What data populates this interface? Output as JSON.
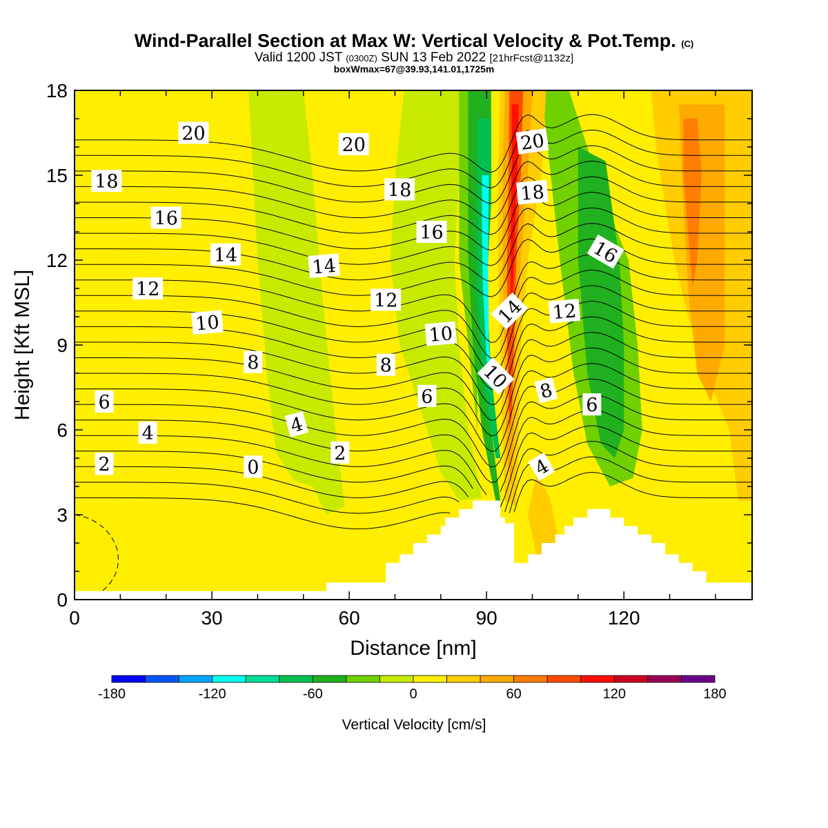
{
  "chart_data": {
    "type": "heatmap",
    "title": "Wind-Parallel Section at Max W: Vertical Velocity & Pot.Temp.",
    "title_mark": "(C)",
    "subtitle": {
      "pre": "Valid 1200 JST",
      "utc": "(0300Z)",
      "date": "SUN 13 Feb 2022",
      "fcst": "[21hrFcst@1132z]"
    },
    "subtitle2": "boxWmax=67@39.93,141.01,1725m",
    "xlabel": "Distance [nm]",
    "ylabel": "Height [Kft MSL]",
    "xlim": [
      0,
      148
    ],
    "ylim": [
      0,
      18
    ],
    "x_ticks": [
      "0",
      "30",
      "60",
      "90",
      "120"
    ],
    "x_tick_values": [
      0,
      30,
      60,
      90,
      120
    ],
    "y_ticks": [
      "0",
      "3",
      "6",
      "9",
      "12",
      "15",
      "18"
    ],
    "y_tick_values": [
      0,
      3,
      6,
      9,
      12,
      15,
      18
    ],
    "colorbar": {
      "label": "Vertical Velocity [cm/s]",
      "range": [
        -180,
        180
      ],
      "step": 20,
      "tick_labels": [
        "-180",
        "-120",
        "-60",
        "0",
        "60",
        "120",
        "180"
      ],
      "tick_values": [
        -180,
        -120,
        -60,
        0,
        60,
        120,
        180
      ],
      "colors": [
        "#0000ff",
        "#0055ff",
        "#00a5ff",
        "#00ffee",
        "#00dd99",
        "#00c050",
        "#20b020",
        "#70d000",
        "#c8ea00",
        "#ffee00",
        "#ffcc00",
        "#ffaa00",
        "#ff7d00",
        "#ff4b00",
        "#ff0f00",
        "#cc0020",
        "#990055",
        "#6a008a"
      ]
    },
    "velocity_regions": [
      {
        "w": 10,
        "pts": [
          [
            0,
            0.3
          ],
          [
            148,
            0.3
          ],
          [
            148,
            18
          ],
          [
            0,
            18
          ]
        ]
      },
      {
        "w": -10,
        "pts": [
          [
            38,
            18
          ],
          [
            50,
            18
          ],
          [
            52,
            15
          ],
          [
            54,
            11
          ],
          [
            57,
            6
          ],
          [
            59,
            3.3
          ],
          [
            55,
            3
          ],
          [
            52,
            4
          ],
          [
            48,
            4.2
          ],
          [
            44,
            5.2
          ],
          [
            42,
            8
          ],
          [
            40,
            12
          ],
          [
            39,
            15
          ]
        ]
      },
      {
        "w": -10,
        "pts": [
          [
            72,
            18
          ],
          [
            85,
            18
          ],
          [
            84,
            15
          ],
          [
            83,
            12
          ],
          [
            84,
            9
          ],
          [
            86,
            6
          ],
          [
            89,
            3.6
          ],
          [
            84,
            3.5
          ],
          [
            80,
            4.5
          ],
          [
            76,
            6.5
          ],
          [
            71,
            9
          ],
          [
            69,
            12
          ],
          [
            70,
            15
          ]
        ]
      },
      {
        "w": -30,
        "pts": [
          [
            84,
            18
          ],
          [
            90,
            18
          ],
          [
            89,
            15
          ],
          [
            89,
            12
          ],
          [
            88,
            9
          ],
          [
            88,
            6
          ],
          [
            90,
            3.8
          ],
          [
            88,
            6
          ],
          [
            86,
            9
          ],
          [
            84,
            12
          ],
          [
            84,
            15
          ]
        ]
      },
      {
        "w": -30,
        "pts": [
          [
            102,
            18
          ],
          [
            108,
            18
          ],
          [
            112,
            16
          ],
          [
            116,
            14
          ],
          [
            121,
            12
          ],
          [
            123,
            9
          ],
          [
            124,
            6
          ],
          [
            122,
            4.3
          ],
          [
            117,
            4
          ],
          [
            112,
            5.5
          ],
          [
            109,
            8
          ],
          [
            106,
            12
          ],
          [
            104,
            15
          ]
        ]
      },
      {
        "w": -50,
        "pts": [
          [
            110,
            16
          ],
          [
            116,
            15.5
          ],
          [
            119,
            12
          ],
          [
            120,
            9
          ],
          [
            120,
            6
          ],
          [
            118,
            5
          ],
          [
            115,
            5.5
          ],
          [
            112,
            8
          ],
          [
            110,
            12
          ]
        ]
      },
      {
        "w": -50,
        "pts": [
          [
            86,
            18
          ],
          [
            91,
            18
          ],
          [
            91,
            15
          ],
          [
            90,
            12
          ],
          [
            90,
            9
          ],
          [
            91,
            6
          ],
          [
            93,
            3.5
          ],
          [
            92,
            3.5
          ],
          [
            89,
            6
          ],
          [
            87,
            9
          ],
          [
            86,
            12
          ],
          [
            86,
            15
          ]
        ]
      },
      {
        "w": -70,
        "pts": [
          [
            88,
            17
          ],
          [
            91,
            17
          ],
          [
            91,
            14
          ],
          [
            90,
            11
          ],
          [
            91,
            8
          ],
          [
            93,
            5
          ],
          [
            92,
            5
          ],
          [
            89,
            8
          ],
          [
            88,
            11
          ],
          [
            88,
            14
          ]
        ]
      },
      {
        "w": -110,
        "pts": [
          [
            89,
            15
          ],
          [
            90.5,
            15
          ],
          [
            90.3,
            12
          ],
          [
            90.5,
            9
          ],
          [
            91.5,
            7.5
          ],
          [
            90,
            8.5
          ],
          [
            89.2,
            11
          ],
          [
            89,
            13
          ]
        ]
      },
      {
        "w": 30,
        "pts": [
          [
            93,
            18
          ],
          [
            103,
            18
          ],
          [
            102,
            15
          ],
          [
            99,
            12
          ],
          [
            97.5,
            9
          ],
          [
            97,
            6
          ],
          [
            96.5,
            3.3
          ],
          [
            94,
            3.5
          ],
          [
            93.5,
            6
          ],
          [
            93,
            9
          ],
          [
            92.5,
            12
          ],
          [
            92.5,
            15
          ]
        ]
      },
      {
        "w": 30,
        "pts": [
          [
            101,
            4.5
          ],
          [
            104,
            3.5
          ],
          [
            106,
            1.8
          ],
          [
            101,
            1.5
          ],
          [
            99,
            3
          ]
        ]
      },
      {
        "w": 50,
        "pts": [
          [
            94,
            18
          ],
          [
            100,
            18
          ],
          [
            99,
            15
          ],
          [
            97.5,
            12
          ],
          [
            96.5,
            9
          ],
          [
            96,
            6
          ],
          [
            95.5,
            4
          ],
          [
            94.5,
            5
          ],
          [
            94,
            8
          ],
          [
            93.5,
            12
          ],
          [
            93.5,
            15
          ]
        ]
      },
      {
        "w": 90,
        "pts": [
          [
            95,
            18
          ],
          [
            98,
            18
          ],
          [
            97.5,
            15
          ],
          [
            96.5,
            12
          ],
          [
            96,
            9
          ],
          [
            95.5,
            6.5
          ],
          [
            95,
            6
          ],
          [
            94.5,
            9
          ],
          [
            94.5,
            12
          ],
          [
            94.8,
            15
          ]
        ]
      },
      {
        "w": 110,
        "pts": [
          [
            95.5,
            17.5
          ],
          [
            97,
            17.5
          ],
          [
            96.7,
            15
          ],
          [
            96,
            12
          ],
          [
            95.6,
            10
          ],
          [
            95.2,
            10.5
          ],
          [
            95.3,
            13
          ],
          [
            95.5,
            15.5
          ]
        ]
      },
      {
        "w": 30,
        "pts": [
          [
            126,
            18
          ],
          [
            148,
            18
          ],
          [
            148,
            3.5
          ],
          [
            145,
            3.5
          ],
          [
            143,
            6
          ],
          [
            138,
            8
          ],
          [
            134,
            10
          ],
          [
            131,
            12
          ],
          [
            129,
            14
          ],
          [
            127,
            16
          ]
        ]
      },
      {
        "w": 50,
        "pts": [
          [
            132,
            17.5
          ],
          [
            142,
            17.5
          ],
          [
            142,
            9
          ],
          [
            139,
            7
          ],
          [
            136,
            8
          ],
          [
            134,
            11
          ],
          [
            133,
            14
          ]
        ]
      },
      {
        "w": 70,
        "pts": [
          [
            133,
            17
          ],
          [
            136,
            17
          ],
          [
            137,
            15
          ],
          [
            136,
            12
          ],
          [
            135,
            11
          ],
          [
            134,
            13
          ],
          [
            133,
            15
          ]
        ]
      }
    ],
    "terrain_height": [
      [
        0,
        0.3
      ],
      [
        55,
        0.3
      ],
      [
        55,
        0.6
      ],
      [
        68,
        0.6
      ],
      [
        68,
        1.3
      ],
      [
        71,
        1.3
      ],
      [
        71,
        1.6
      ],
      [
        74,
        1.6
      ],
      [
        74,
        2.0
      ],
      [
        77,
        2.0
      ],
      [
        77,
        2.3
      ],
      [
        80,
        2.3
      ],
      [
        80,
        2.6
      ],
      [
        81,
        2.6
      ],
      [
        81,
        2.9
      ],
      [
        84,
        2.9
      ],
      [
        84,
        3.2
      ],
      [
        87,
        3.2
      ],
      [
        87,
        3.5
      ],
      [
        93,
        3.5
      ],
      [
        93,
        2.9
      ],
      [
        94,
        2.9
      ],
      [
        94,
        2.7
      ],
      [
        96,
        2.7
      ],
      [
        96,
        1.3
      ],
      [
        99,
        1.3
      ],
      [
        99,
        1.6
      ],
      [
        102,
        1.6
      ],
      [
        102,
        2.0
      ],
      [
        105,
        2.0
      ],
      [
        105,
        2.3
      ],
      [
        107,
        2.3
      ],
      [
        107,
        2.6
      ],
      [
        109,
        2.6
      ],
      [
        109,
        2.9
      ],
      [
        112,
        2.9
      ],
      [
        112,
        3.2
      ],
      [
        117,
        3.2
      ],
      [
        117,
        2.9
      ],
      [
        120,
        2.9
      ],
      [
        120,
        2.6
      ],
      [
        123,
        2.6
      ],
      [
        123,
        2.3
      ],
      [
        126,
        2.3
      ],
      [
        126,
        2.0
      ],
      [
        129,
        2.0
      ],
      [
        129,
        1.6
      ],
      [
        132,
        1.6
      ],
      [
        132,
        1.3
      ],
      [
        135,
        1.3
      ],
      [
        135,
        1.0
      ],
      [
        138,
        1.0
      ],
      [
        138,
        0.6
      ],
      [
        148,
        0.6
      ],
      [
        148,
        0.3
      ]
    ],
    "pot_temp_contours": {
      "unit": "C",
      "interval": 1,
      "levels": [
        "0",
        "2",
        "4",
        "6",
        "8",
        "10",
        "12",
        "14",
        "16",
        "18",
        "20"
      ],
      "labels": [
        {
          "text": "20",
          "x": 26,
          "y": 16.5,
          "rot": 0
        },
        {
          "text": "20",
          "x": 61,
          "y": 16.1,
          "rot": 0
        },
        {
          "text": "20",
          "x": 100,
          "y": 16.2,
          "rot": -8
        },
        {
          "text": "18",
          "x": 7,
          "y": 14.8,
          "rot": 0
        },
        {
          "text": "18",
          "x": 71,
          "y": 14.5,
          "rot": 0
        },
        {
          "text": "18",
          "x": 100,
          "y": 14.4,
          "rot": -5
        },
        {
          "text": "16",
          "x": 20,
          "y": 13.5,
          "rot": 0
        },
        {
          "text": "16",
          "x": 78,
          "y": 13.0,
          "rot": 0
        },
        {
          "text": "16",
          "x": 116,
          "y": 12.3,
          "rot": 30
        },
        {
          "text": "14",
          "x": 33,
          "y": 12.2,
          "rot": 0
        },
        {
          "text": "14",
          "x": 54.5,
          "y": 11.8,
          "rot": -5
        },
        {
          "text": "14",
          "x": 95,
          "y": 10.2,
          "rot": -45
        },
        {
          "text": "12",
          "x": 16,
          "y": 11.0,
          "rot": 0
        },
        {
          "text": "12",
          "x": 68,
          "y": 10.6,
          "rot": 0
        },
        {
          "text": "12",
          "x": 107,
          "y": 10.2,
          "rot": -5
        },
        {
          "text": "10",
          "x": 29,
          "y": 9.8,
          "rot": -5
        },
        {
          "text": "10",
          "x": 80,
          "y": 9.4,
          "rot": -5
        },
        {
          "text": "10",
          "x": 92,
          "y": 7.9,
          "rot": 45
        },
        {
          "text": "8",
          "x": 39,
          "y": 8.4,
          "rot": 0
        },
        {
          "text": "8",
          "x": 68,
          "y": 8.3,
          "rot": 0
        },
        {
          "text": "8",
          "x": 103,
          "y": 7.4,
          "rot": -15
        },
        {
          "text": "6",
          "x": 6.5,
          "y": 7.0,
          "rot": 0
        },
        {
          "text": "6",
          "x": 77,
          "y": 7.2,
          "rot": 0
        },
        {
          "text": "6",
          "x": 113,
          "y": 6.9,
          "rot": 0
        },
        {
          "text": "4",
          "x": 16,
          "y": 5.9,
          "rot": 0
        },
        {
          "text": "4",
          "x": 48.5,
          "y": 6.2,
          "rot": -15
        },
        {
          "text": "4",
          "x": 102,
          "y": 4.7,
          "rot": -30
        },
        {
          "text": "2",
          "x": 6.5,
          "y": 4.8,
          "rot": 0
        },
        {
          "text": "2",
          "x": 58,
          "y": 5.2,
          "rot": 0
        },
        {
          "text": "0",
          "x": 39,
          "y": 4.7,
          "rot": 0
        }
      ]
    }
  }
}
